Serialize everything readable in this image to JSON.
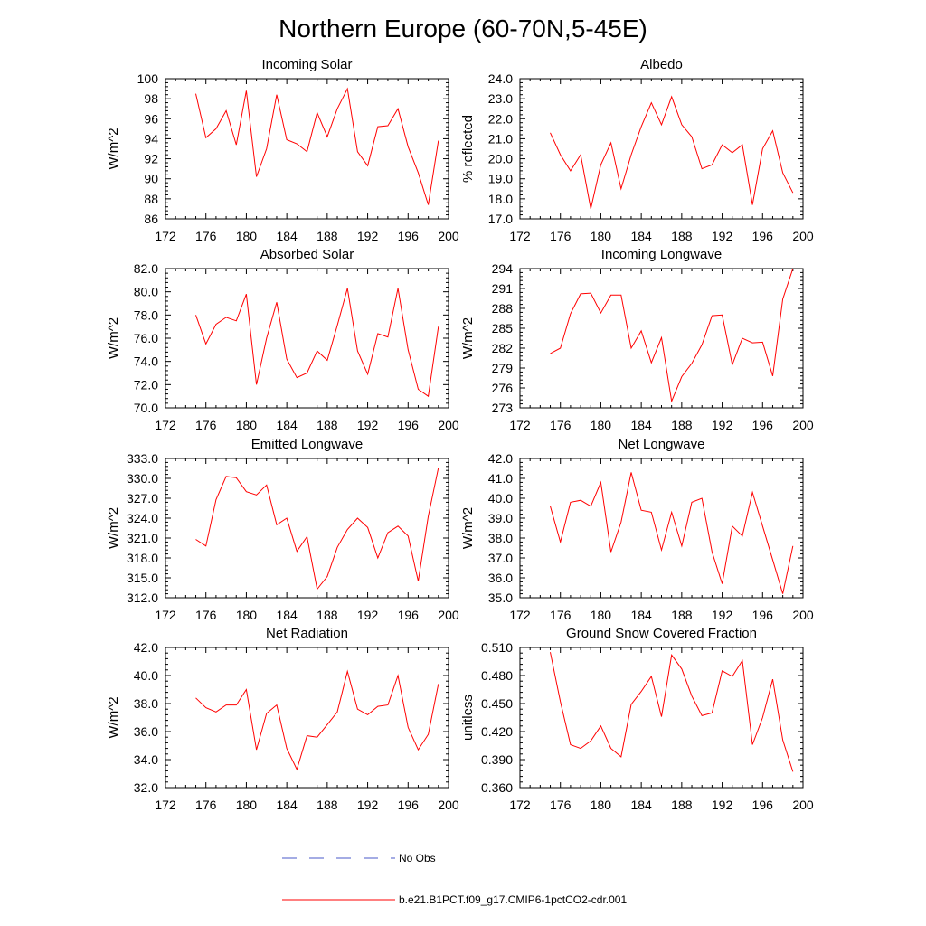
{
  "title": "Northern Europe (60-70N,5-45E)",
  "colors": {
    "model": "#ff0000",
    "obs": "#4a5ac8",
    "axis": "#000000"
  },
  "legend": {
    "obs_label": "No Obs",
    "model_label": "b.e21.B1PCT.f09_g17.CMIP6-1pctCO2-cdr.001"
  },
  "chart_data": [
    {
      "type": "line",
      "title": "Incoming Solar",
      "ylabel": "W/m^2",
      "xlim": [
        172,
        200
      ],
      "xticks": [
        172,
        176,
        180,
        184,
        188,
        192,
        196,
        200
      ],
      "ylim": [
        86,
        100
      ],
      "yticks": [
        "86",
        "88",
        "90",
        "92",
        "94",
        "96",
        "98",
        "100"
      ],
      "series": [
        {
          "x": [
            175,
            176,
            177,
            178,
            179,
            180,
            181,
            182,
            183,
            184,
            185,
            186,
            187,
            188,
            189,
            190,
            191,
            192,
            193,
            194,
            195,
            196,
            197,
            198,
            199
          ],
          "y": [
            98.5,
            94.1,
            95.0,
            96.8,
            93.4,
            98.8,
            90.2,
            93.0,
            98.4,
            93.9,
            93.5,
            92.7,
            96.6,
            94.2,
            97.0,
            99.0,
            92.7,
            91.3,
            95.2,
            95.3,
            97.0,
            93.2,
            90.6,
            87.4,
            93.8
          ]
        }
      ]
    },
    {
      "type": "line",
      "title": "Albedo",
      "ylabel": "% reflected",
      "xlim": [
        172,
        200
      ],
      "xticks": [
        172,
        176,
        180,
        184,
        188,
        192,
        196,
        200
      ],
      "ylim": [
        17,
        24
      ],
      "yticks": [
        "17.0",
        "18.0",
        "19.0",
        "20.0",
        "21.0",
        "22.0",
        "23.0",
        "24.0"
      ],
      "series": [
        {
          "x": [
            175,
            176,
            177,
            178,
            179,
            180,
            181,
            182,
            183,
            184,
            185,
            186,
            187,
            188,
            189,
            190,
            191,
            192,
            193,
            194,
            195,
            196,
            197,
            198,
            199
          ],
          "y": [
            21.3,
            20.2,
            19.4,
            20.2,
            17.5,
            19.7,
            20.8,
            18.5,
            20.2,
            21.6,
            22.8,
            21.7,
            23.1,
            21.7,
            21.1,
            19.5,
            19.7,
            20.7,
            20.3,
            20.7,
            17.7,
            20.5,
            21.4,
            19.3,
            18.3
          ]
        }
      ]
    },
    {
      "type": "line",
      "title": "Absorbed Solar",
      "ylabel": "W/m^2",
      "xlim": [
        172,
        200
      ],
      "xticks": [
        172,
        176,
        180,
        184,
        188,
        192,
        196,
        200
      ],
      "ylim": [
        70,
        82
      ],
      "yticks": [
        "70.0",
        "72.0",
        "74.0",
        "76.0",
        "78.0",
        "80.0",
        "82.0"
      ],
      "series": [
        {
          "x": [
            175,
            176,
            177,
            178,
            179,
            180,
            181,
            182,
            183,
            184,
            185,
            186,
            187,
            188,
            189,
            190,
            191,
            192,
            193,
            194,
            195,
            196,
            197,
            198,
            199
          ],
          "y": [
            78.0,
            75.5,
            77.2,
            77.8,
            77.5,
            79.8,
            72.0,
            76.0,
            79.1,
            74.2,
            72.6,
            73.0,
            74.9,
            74.1,
            77.1,
            80.3,
            74.9,
            72.9,
            76.4,
            76.1,
            80.3,
            75.0,
            71.6,
            71.0,
            77.0
          ]
        }
      ]
    },
    {
      "type": "line",
      "title": "Incoming Longwave",
      "ylabel": "W/m^2",
      "xlim": [
        172,
        200
      ],
      "xticks": [
        172,
        176,
        180,
        184,
        188,
        192,
        196,
        200
      ],
      "ylim": [
        273,
        294
      ],
      "yticks": [
        "273",
        "276",
        "279",
        "282",
        "285",
        "288",
        "291",
        "294"
      ],
      "series": [
        {
          "x": [
            175,
            176,
            177,
            178,
            179,
            180,
            181,
            182,
            183,
            184,
            185,
            186,
            187,
            188,
            189,
            190,
            191,
            192,
            193,
            194,
            195,
            196,
            197,
            198,
            199
          ],
          "y": [
            281.2,
            282.0,
            287.2,
            290.2,
            290.3,
            287.3,
            290.0,
            290.0,
            282.0,
            284.6,
            279.8,
            283.6,
            274.0,
            277.7,
            279.7,
            282.5,
            286.9,
            287.0,
            279.5,
            283.5,
            282.8,
            282.9,
            277.8,
            289.4,
            294.0
          ]
        }
      ]
    },
    {
      "type": "line",
      "title": "Emitted Longwave",
      "ylabel": "W/m^2",
      "xlim": [
        172,
        200
      ],
      "xticks": [
        172,
        176,
        180,
        184,
        188,
        192,
        196,
        200
      ],
      "ylim": [
        312,
        333
      ],
      "yticks": [
        "312.0",
        "315.0",
        "318.0",
        "321.0",
        "324.0",
        "327.0",
        "330.0",
        "333.0"
      ],
      "series": [
        {
          "x": [
            175,
            176,
            177,
            178,
            179,
            180,
            181,
            182,
            183,
            184,
            185,
            186,
            187,
            188,
            189,
            190,
            191,
            192,
            193,
            194,
            195,
            196,
            197,
            198,
            199
          ],
          "y": [
            320.8,
            319.8,
            326.8,
            330.3,
            330.1,
            328.0,
            327.5,
            329.0,
            323.0,
            324.0,
            319.0,
            321.2,
            313.3,
            315.2,
            319.6,
            322.3,
            324.0,
            322.6,
            318.0,
            321.8,
            322.8,
            321.3,
            314.5,
            324.3,
            331.6
          ]
        }
      ]
    },
    {
      "type": "line",
      "title": "Net Longwave",
      "ylabel": "W/m^2",
      "xlim": [
        172,
        200
      ],
      "xticks": [
        172,
        176,
        180,
        184,
        188,
        192,
        196,
        200
      ],
      "ylim": [
        35,
        42
      ],
      "yticks": [
        "35.0",
        "36.0",
        "37.0",
        "38.0",
        "39.0",
        "40.0",
        "41.0",
        "42.0"
      ],
      "series": [
        {
          "x": [
            175,
            176,
            177,
            178,
            179,
            180,
            181,
            182,
            183,
            184,
            185,
            186,
            187,
            188,
            189,
            190,
            191,
            192,
            193,
            194,
            195,
            196,
            197,
            198,
            199
          ],
          "y": [
            39.6,
            37.8,
            39.8,
            39.9,
            39.6,
            40.8,
            37.3,
            38.8,
            41.3,
            39.4,
            39.3,
            37.4,
            39.3,
            37.6,
            39.8,
            40.0,
            37.3,
            35.7,
            38.6,
            38.1,
            40.3,
            38.6,
            36.9,
            35.2,
            37.6
          ]
        }
      ]
    },
    {
      "type": "line",
      "title": "Net Radiation",
      "ylabel": "W/m^2",
      "xlim": [
        172,
        200
      ],
      "xticks": [
        172,
        176,
        180,
        184,
        188,
        192,
        196,
        200
      ],
      "ylim": [
        32,
        42
      ],
      "yticks": [
        "32.0",
        "34.0",
        "36.0",
        "38.0",
        "40.0",
        "42.0"
      ],
      "series": [
        {
          "x": [
            175,
            176,
            177,
            178,
            179,
            180,
            181,
            182,
            183,
            184,
            185,
            186,
            187,
            188,
            189,
            190,
            191,
            192,
            193,
            194,
            195,
            196,
            197,
            198,
            199
          ],
          "y": [
            38.4,
            37.7,
            37.4,
            37.9,
            37.9,
            39.0,
            34.7,
            37.3,
            37.9,
            34.8,
            33.3,
            35.7,
            35.6,
            36.5,
            37.4,
            40.3,
            37.6,
            37.2,
            37.8,
            37.9,
            40.0,
            36.3,
            34.7,
            35.8,
            39.4
          ]
        }
      ]
    },
    {
      "type": "line",
      "title": "Ground Snow Covered Fraction",
      "ylabel": "unitless",
      "xlim": [
        172,
        200
      ],
      "xticks": [
        172,
        176,
        180,
        184,
        188,
        192,
        196,
        200
      ],
      "ylim": [
        0.36,
        0.51
      ],
      "yticks": [
        "0.360",
        "0.390",
        "0.420",
        "0.450",
        "0.480",
        "0.510"
      ],
      "series": [
        {
          "x": [
            175,
            176,
            177,
            178,
            179,
            180,
            181,
            182,
            183,
            184,
            185,
            186,
            187,
            188,
            189,
            190,
            191,
            192,
            193,
            194,
            195,
            196,
            197,
            198,
            199
          ],
          "y": [
            0.505,
            0.452,
            0.406,
            0.402,
            0.41,
            0.426,
            0.402,
            0.393,
            0.449,
            0.463,
            0.479,
            0.436,
            0.502,
            0.487,
            0.458,
            0.437,
            0.44,
            0.485,
            0.479,
            0.496,
            0.406,
            0.435,
            0.476,
            0.411,
            0.377
          ]
        }
      ]
    }
  ]
}
